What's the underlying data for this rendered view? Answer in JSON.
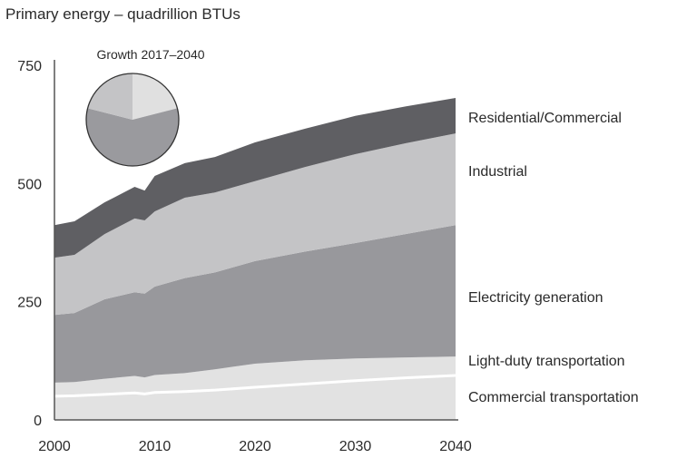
{
  "chart_data": {
    "type": "area",
    "stacked": true,
    "title": "Primary energy – quadrillion BTUs",
    "xlabel": "",
    "ylabel": "",
    "xlim": [
      2000,
      2040
    ],
    "ylim": [
      0,
      750
    ],
    "x_ticks": [
      "2000",
      "2010",
      "2020",
      "2030",
      "2040"
    ],
    "y_ticks": [
      "0",
      "250",
      "500",
      "750"
    ],
    "grid": false,
    "legend": "right-end labels",
    "x": [
      2000,
      2002,
      2005,
      2008,
      2009,
      2010,
      2013,
      2016,
      2020,
      2025,
      2030,
      2035,
      2040
    ],
    "series": [
      {
        "name": "Commercial transportation",
        "color": "#e2e2e2",
        "values": [
          50,
          51,
          54,
          57,
          55,
          58,
          60,
          63,
          69,
          76,
          83,
          89,
          94
        ]
      },
      {
        "name": "Light-duty transportation",
        "color": "#e2e2e2",
        "values": [
          29,
          29,
          33,
          36,
          35,
          37,
          39,
          44,
          50,
          50,
          47,
          43,
          40
        ]
      },
      {
        "name": "Electricity generation",
        "color": "#98989c",
        "values": [
          143,
          146,
          168,
          177,
          177,
          187,
          201,
          205,
          217,
          230,
          244,
          261,
          278
        ]
      },
      {
        "name": "Industrial",
        "color": "#c4c4c6",
        "values": [
          121,
          123,
          138,
          156,
          155,
          159,
          170,
          169,
          169,
          179,
          188,
          192,
          194
        ]
      },
      {
        "name": "Residential/Commercial",
        "color": "#5f5f63",
        "values": [
          69,
          71,
          67,
          67,
          63,
          75,
          73,
          75,
          82,
          81,
          81,
          78,
          75
        ]
      }
    ],
    "inset_pie": {
      "title": "Growth 2017–2040",
      "slices": [
        {
          "value": 21,
          "color": "#e0e0e0"
        },
        {
          "value": 58,
          "color": "#9a9a9e"
        },
        {
          "value": 21,
          "color": "#c4c4c6"
        }
      ]
    }
  }
}
